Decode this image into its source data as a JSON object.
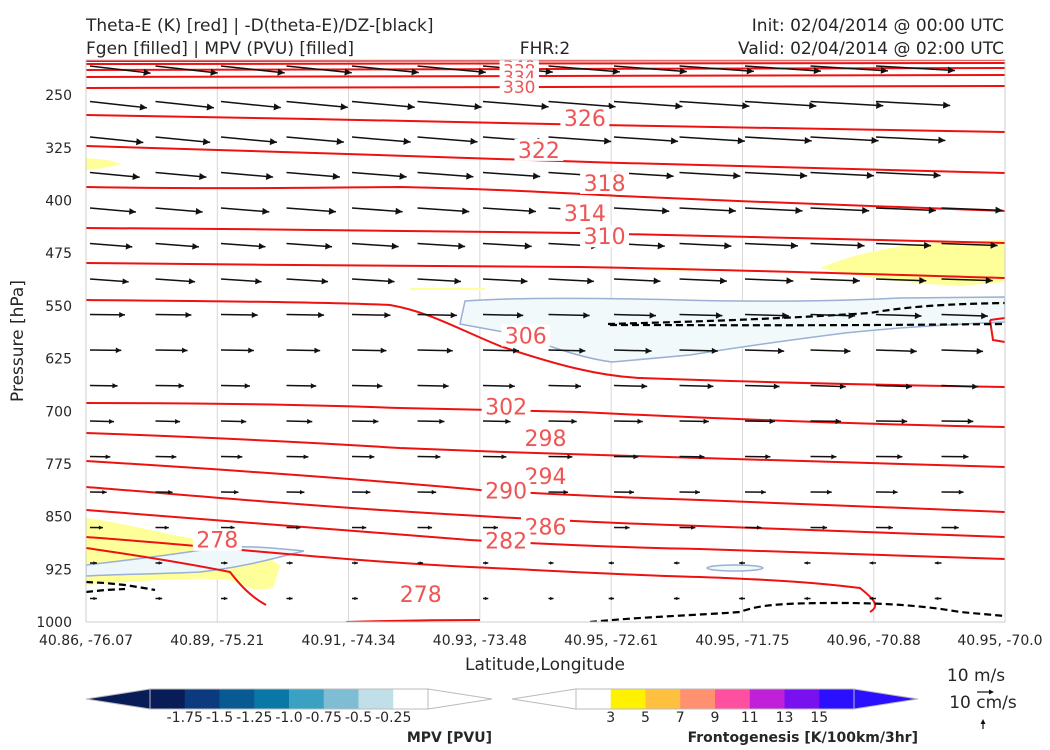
{
  "header": {
    "title_left_1": "Theta-E (K) [red] | -D(theta-E)/DZ-[black]",
    "title_left_2": "Fgen [filled] | MPV (PVU) [filled]",
    "title_center": "FHR:2",
    "title_right_1": "Init: 02/04/2014 @ 00:00 UTC",
    "title_right_2": "Valid: 02/04/2014 @ 02:00 UTC"
  },
  "chart_data": {
    "type": "cross-section",
    "xlabel": "Latitude,Longitude",
    "ylabel": "Pressure [hPa]",
    "ylim": [
      1000,
      200
    ],
    "y_ticks": [
      250,
      325,
      400,
      475,
      550,
      625,
      700,
      775,
      850,
      925,
      1000
    ],
    "x_ticks": [
      "40.86, -76.07",
      "40.89, -75.21",
      "40.91, -74.34",
      "40.93, -73.48",
      "40.95, -72.61",
      "40.95, -71.75",
      "40.96, -70.88",
      "40.95, -70.0"
    ],
    "theta_e_labels": [
      {
        "label": "340",
        "x": 3.3,
        "p": 209
      },
      {
        "label": "338",
        "x": 3.3,
        "p": 215
      },
      {
        "label": "334",
        "x": 3.3,
        "p": 224
      },
      {
        "label": "330",
        "x": 3.3,
        "p": 238
      },
      {
        "label": "326",
        "x": 3.8,
        "p": 283
      },
      {
        "label": "322",
        "x": 3.45,
        "p": 328
      },
      {
        "label": "318",
        "x": 3.95,
        "p": 375
      },
      {
        "label": "314",
        "x": 3.8,
        "p": 418
      },
      {
        "label": "310",
        "x": 3.95,
        "p": 451
      },
      {
        "label": "306",
        "x": 3.35,
        "p": 592
      },
      {
        "label": "302",
        "x": 3.2,
        "p": 693
      },
      {
        "label": "298",
        "x": 3.5,
        "p": 738
      },
      {
        "label": "294",
        "x": 3.5,
        "p": 792
      },
      {
        "label": "290",
        "x": 3.2,
        "p": 813
      },
      {
        "label": "286",
        "x": 3.5,
        "p": 864
      },
      {
        "label": "282",
        "x": 3.2,
        "p": 884
      },
      {
        "label": "278",
        "x": 1.0,
        "p": 883
      },
      {
        "label": "278",
        "x": 2.55,
        "p": 960
      }
    ],
    "wind_reference": {
      "u_label": "10 m/s",
      "w_label": "10 cm/s"
    },
    "colorbars": [
      {
        "label": "MPV [PVU]",
        "ticks": [
          "-1.75",
          "-1.5",
          "-1.25",
          "-1.0",
          "-0.75",
          "-0.5",
          "-0.25"
        ],
        "colors": [
          "#081d58",
          "#0b3a7e",
          "#085a92",
          "#0a78a6",
          "#3aa1c2",
          "#7fbdd4",
          "#c0dfe8",
          "#ffffff"
        ]
      },
      {
        "label": "Frontogenesis [K/100km/3hr]",
        "ticks": [
          "3",
          "5",
          "7",
          "9",
          "11",
          "13",
          "15"
        ],
        "colors": [
          "#ffffff",
          "#fff200",
          "#ffc040",
          "#ff9070",
          "#ff50a0",
          "#c020d8",
          "#7810f0",
          "#2a10ff"
        ]
      }
    ]
  }
}
